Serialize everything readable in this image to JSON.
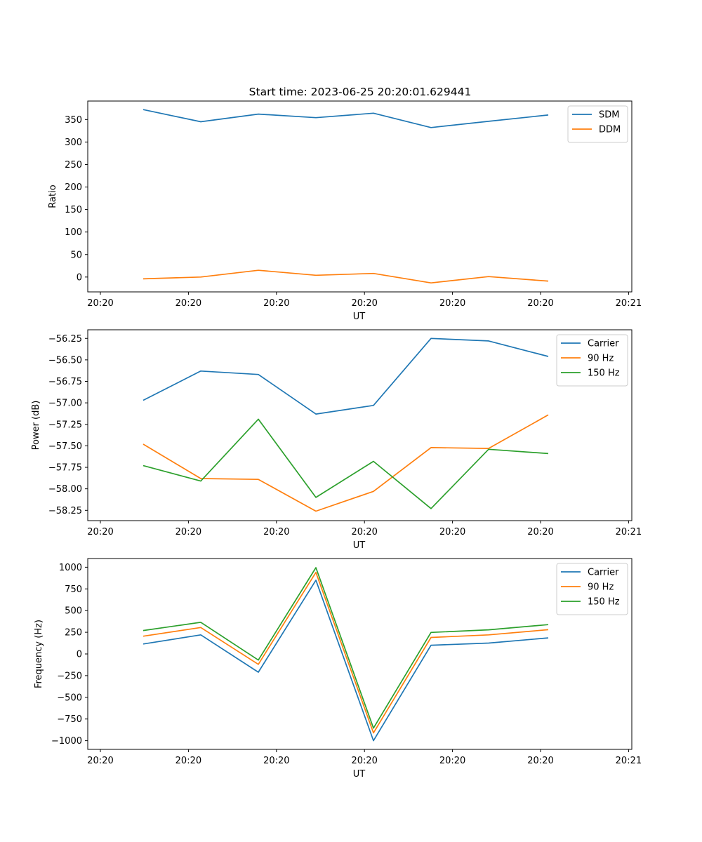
{
  "figure": {
    "title": "Start time: 2023-06-25 20:20:01.629441"
  },
  "chart_data": [
    {
      "type": "line",
      "xlabel": "UT",
      "ylabel": "Ratio",
      "x_tick_labels": [
        "20:20",
        "20:20",
        "20:20",
        "20:20",
        "20:20",
        "20:20",
        "20:20"
      ],
      "x_last_tick_label": "20:21",
      "x_points": 8,
      "ylim": [
        -33,
        391
      ],
      "yticks": [
        0,
        50,
        100,
        150,
        200,
        250,
        300,
        350
      ],
      "ytick_labels": [
        "0",
        "50",
        "100",
        "150",
        "200",
        "250",
        "300",
        "350"
      ],
      "legend": "upper-right",
      "grid": false,
      "series": [
        {
          "name": "SDM",
          "color": "#1f77b4",
          "values": [
            372,
            345,
            362,
            354,
            364,
            332,
            346,
            360
          ]
        },
        {
          "name": "DDM",
          "color": "#ff7f0e",
          "values": [
            -4,
            0,
            15,
            4,
            8,
            -13,
            1,
            -9
          ]
        }
      ]
    },
    {
      "type": "line",
      "xlabel": "UT",
      "ylabel": "Power (dB)",
      "x_tick_labels": [
        "20:20",
        "20:20",
        "20:20",
        "20:20",
        "20:20",
        "20:20",
        "20:20"
      ],
      "x_last_tick_label": "20:21",
      "x_points": 8,
      "ylim": [
        -58.37,
        -56.15
      ],
      "yticks": [
        -58.25,
        -58.0,
        -57.75,
        -57.5,
        -57.25,
        -57.0,
        -56.75,
        -56.5,
        -56.25
      ],
      "ytick_labels": [
        "−58.25",
        "−58.00",
        "−57.75",
        "−57.50",
        "−57.25",
        "−57.00",
        "−56.75",
        "−56.50",
        "−56.25"
      ],
      "legend": "upper-right",
      "grid": false,
      "series": [
        {
          "name": "Carrier",
          "color": "#1f77b4",
          "values": [
            -56.97,
            -56.63,
            -56.67,
            -57.13,
            -57.03,
            -56.25,
            -56.28,
            -56.46
          ]
        },
        {
          "name": "90 Hz",
          "color": "#ff7f0e",
          "values": [
            -57.48,
            -57.88,
            -57.89,
            -58.26,
            -58.03,
            -57.52,
            -57.53,
            -57.14
          ]
        },
        {
          "name": "150 Hz",
          "color": "#2ca02c",
          "values": [
            -57.73,
            -57.91,
            -57.19,
            -58.1,
            -57.68,
            -58.23,
            -57.54,
            -57.59
          ]
        }
      ]
    },
    {
      "type": "line",
      "xlabel": "UT",
      "ylabel": "Frequency (Hz)",
      "x_tick_labels": [
        "20:20",
        "20:20",
        "20:20",
        "20:20",
        "20:20",
        "20:20",
        "20:20"
      ],
      "x_last_tick_label": "20:21",
      "x_points": 8,
      "ylim": [
        -1100,
        1100
      ],
      "yticks": [
        -1000,
        -750,
        -500,
        -250,
        0,
        250,
        500,
        750,
        1000
      ],
      "ytick_labels": [
        "−1000",
        "−750",
        "−500",
        "−250",
        "0",
        "250",
        "500",
        "750",
        "1000"
      ],
      "legend": "upper-right",
      "grid": false,
      "series": [
        {
          "name": "Carrier",
          "color": "#1f77b4",
          "values": [
            115,
            220,
            -210,
            850,
            -1000,
            100,
            125,
            185
          ]
        },
        {
          "name": "90 Hz",
          "color": "#ff7f0e",
          "values": [
            205,
            305,
            -120,
            940,
            -910,
            190,
            220,
            280
          ]
        },
        {
          "name": "150 Hz",
          "color": "#2ca02c",
          "values": [
            270,
            365,
            -70,
            995,
            -855,
            248,
            278,
            338
          ]
        }
      ]
    }
  ]
}
